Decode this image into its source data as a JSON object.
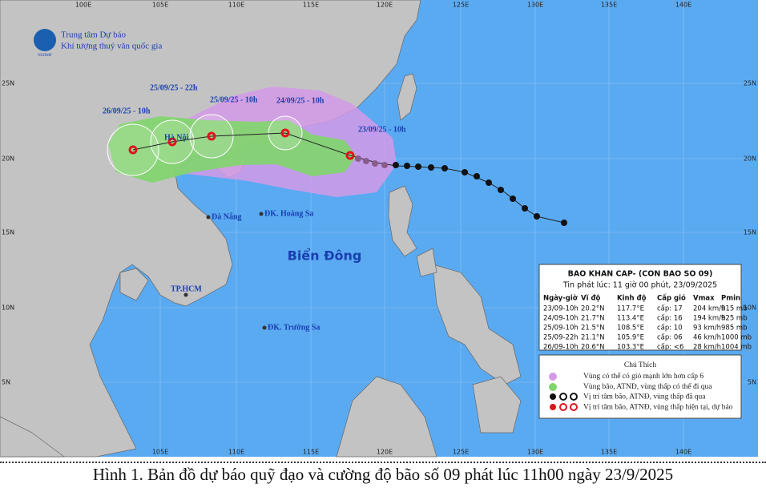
{
  "header": {
    "org_line1": "Trung tâm Dự báo",
    "org_line2": "Khí tượng thuỷ văn quốc gia",
    "logo_text": "NCHMF"
  },
  "lon_labels": [
    "100E",
    "105E",
    "110E",
    "115E",
    "120E",
    "125E",
    "130E",
    "135E",
    "140E"
  ],
  "lat_labels": [
    "25N",
    "20N",
    "15N",
    "10N",
    "5N"
  ],
  "track_labels": [
    "25/09/25 - 22h",
    "26/09/25 - 10h",
    "25/09/25 - 10h",
    "24/09/25 - 10h",
    "23/09/25 - 10h"
  ],
  "places": [
    "Hà Nội",
    "Đà Nẵng",
    "ĐK. Hoàng Sa",
    "TP.HCM",
    "ĐK. Trường Sa"
  ],
  "sea_label": "Biển Đông",
  "info": {
    "title": "BAO KHAN CAP- (CON BAO SO 09)",
    "subtitle": "Tin phát lúc: 11 giờ 00 phút, 23/09/2025",
    "columns": [
      "Ngày-giờ",
      "Vĩ độ",
      "Kinh độ",
      "Cấp gió",
      "Vmax",
      "Pmin"
    ],
    "rows": [
      [
        "23/09-10h",
        "20.2°N",
        "117.7°E",
        "cấp: 17",
        "204 km/h",
        "915 mb"
      ],
      [
        "24/09-10h",
        "21.7°N",
        "113.4°E",
        "cấp: 16",
        "194 km/h",
        "925 mb"
      ],
      [
        "25/09-10h",
        "21.5°N",
        "108.5°E",
        "cấp: 10",
        "93 km/h",
        "985 mb"
      ],
      [
        "25/09-22h",
        "21.1°N",
        "105.9°E",
        "cấp: 06",
        "46 km/h",
        "1000 mb"
      ],
      [
        "26/09-10h",
        "20.6°N",
        "103.3°E",
        "cấp: <6",
        "28 km/h",
        "1004 mb"
      ]
    ]
  },
  "legend": {
    "title": "Chú Thích",
    "items": [
      "Vùng có thể có gió mạnh lớn hơn cấp 6",
      "Vùng bão, ATNĐ, vùng thấp có thể đi qua",
      "Vị trí tâm bão, ATNĐ, vùng thấp đã qua",
      "Vị trí tâm bão, ATNĐ, vùng thấp hiện tại, dự báo"
    ]
  },
  "caption": "Hình 1. Bản đồ dự báo quỹ đạo và cường độ bão số 09 phát lúc 11h00 ngày 23/9/2025"
}
